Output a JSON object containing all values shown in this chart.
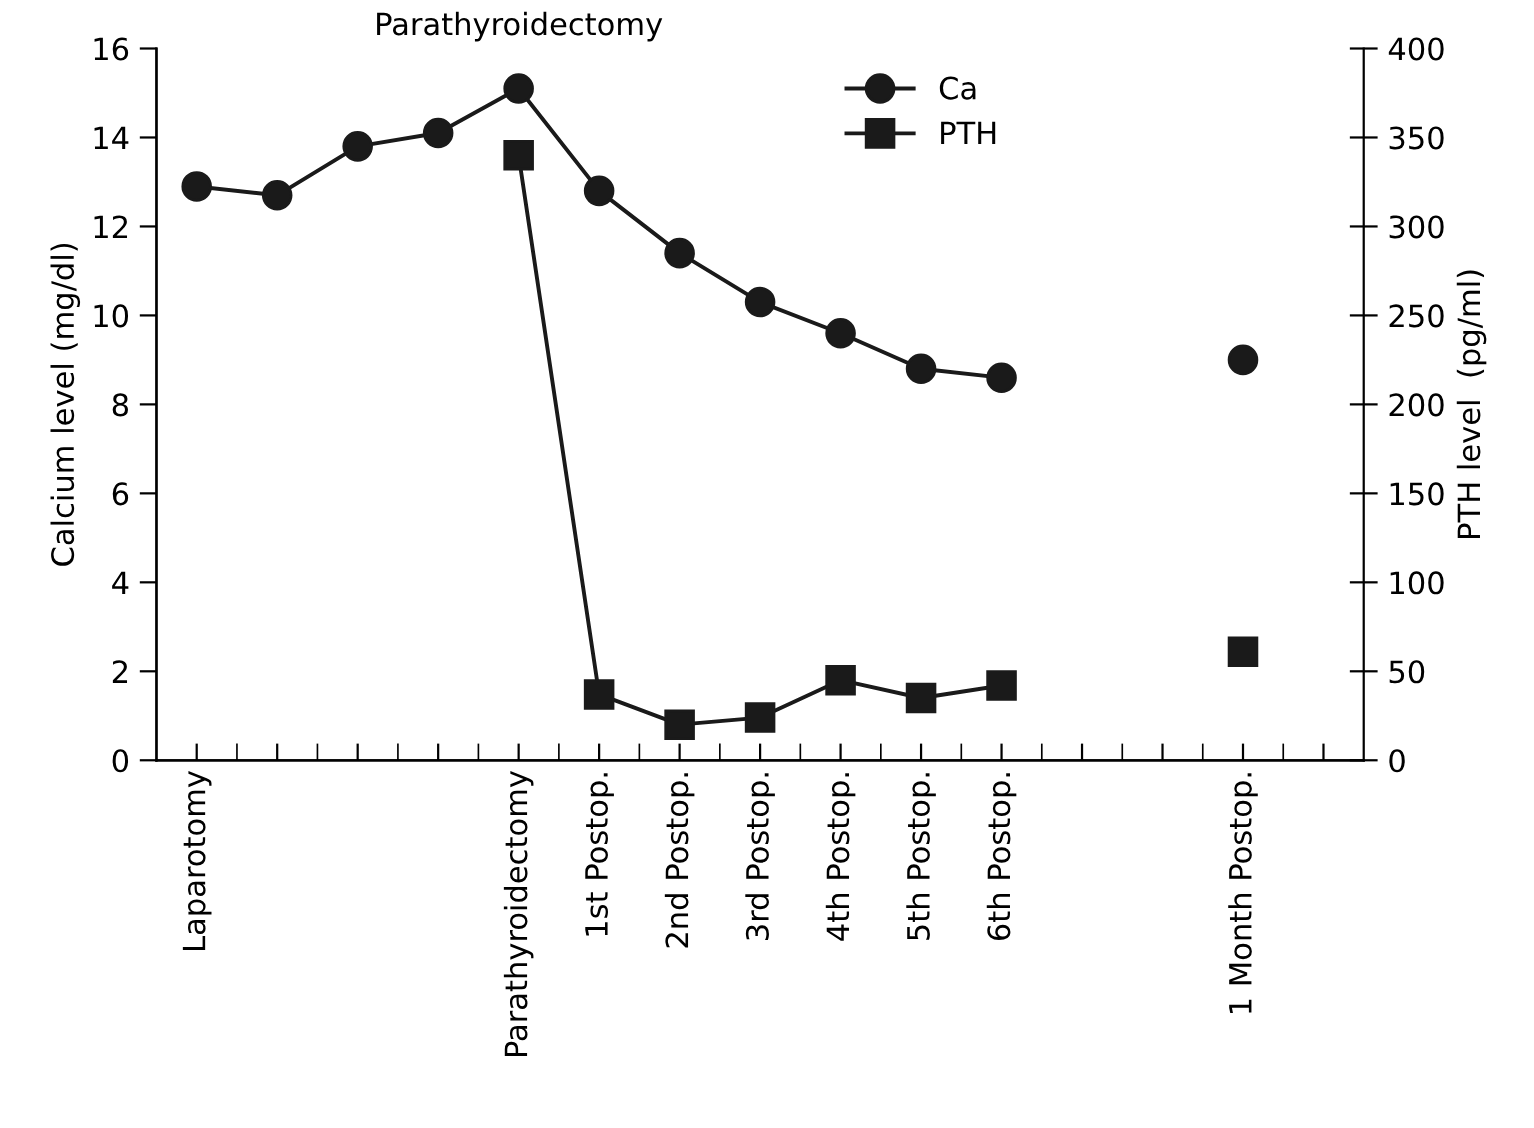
{
  "chart_data": {
    "type": "line",
    "categories": [
      "Laparotomy",
      null,
      null,
      null,
      "Parathyroidectomy",
      "1st Postop.",
      "2nd Postop.",
      "3rd Postop.",
      "4th Postop.",
      "5th Postop.",
      "6th Postop.",
      null,
      null,
      "1 Month Postop.",
      null
    ],
    "series": [
      {
        "name": "Ca",
        "color": "#1a1a1a",
        "marker": "circle",
        "values": [
          12.9,
          12.7,
          13.8,
          14.1,
          15.1,
          12.8,
          11.4,
          10.3,
          9.6,
          8.8,
          8.6,
          null,
          null,
          9.0,
          null
        ]
      },
      {
        "name": "PTH",
        "color": "#1a1a1a",
        "marker": "square",
        "axis": "y2",
        "values": [
          null,
          null,
          null,
          null,
          340,
          37,
          20,
          24,
          45,
          35,
          42,
          null,
          null,
          61,
          null
        ]
      }
    ],
    "ylabel": "Calcium level (mg/dl)",
    "y2label": "PTH level  (pg/ml)",
    "ylim": [
      0,
      16
    ],
    "yticks": [
      0,
      2,
      4,
      6,
      8,
      10,
      12,
      14,
      16
    ],
    "y2lim": [
      0,
      400
    ],
    "y2ticks": [
      0,
      50,
      100,
      150,
      200,
      250,
      300,
      350,
      400
    ],
    "annotations": [
      "Parathyroidectomy"
    ],
    "legend": "top right",
    "grid": false,
    "line_style": "solid"
  }
}
